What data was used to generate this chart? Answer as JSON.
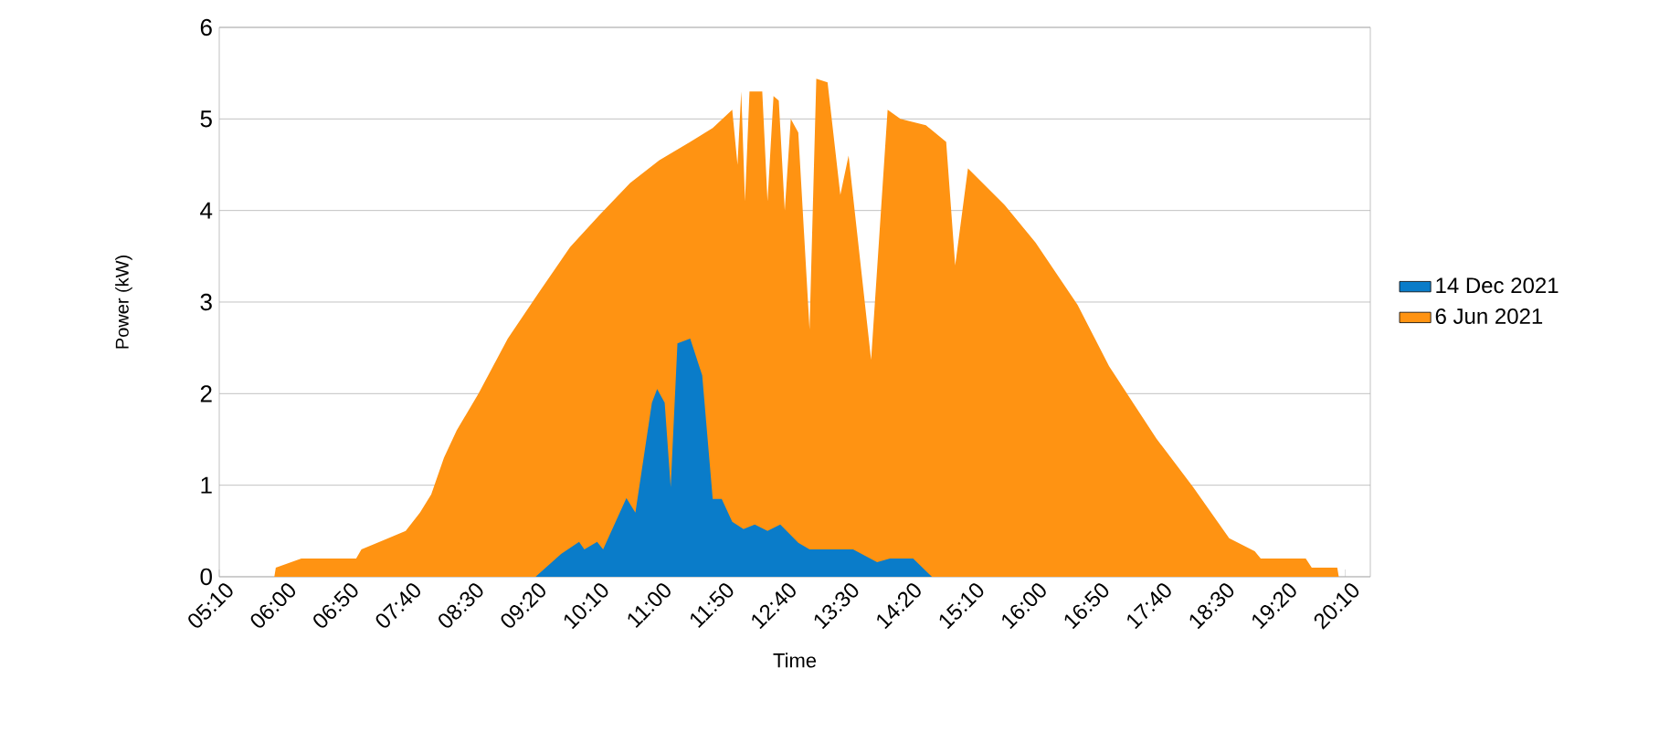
{
  "chart_data": {
    "type": "area",
    "xlabel": "Time",
    "ylabel": "Power (kW)",
    "legend": "right",
    "grid": "y",
    "xlim": [
      5.1667,
      20.5
    ],
    "ylim": [
      0,
      6
    ],
    "yticks": [
      0,
      1,
      2,
      3,
      4,
      5,
      6
    ],
    "xticks": [
      {
        "value": 5.1667,
        "label": "05:10"
      },
      {
        "value": 6.0,
        "label": "06:00"
      },
      {
        "value": 6.8333,
        "label": "06:50"
      },
      {
        "value": 7.6667,
        "label": "07:40"
      },
      {
        "value": 8.5,
        "label": "08:30"
      },
      {
        "value": 9.3333,
        "label": "09:20"
      },
      {
        "value": 10.1667,
        "label": "10:10"
      },
      {
        "value": 11.0,
        "label": "11:00"
      },
      {
        "value": 11.8333,
        "label": "11:50"
      },
      {
        "value": 12.6667,
        "label": "12:40"
      },
      {
        "value": 13.5,
        "label": "13:30"
      },
      {
        "value": 14.3333,
        "label": "14:20"
      },
      {
        "value": 15.1667,
        "label": "15:10"
      },
      {
        "value": 16.0,
        "label": "16:00"
      },
      {
        "value": 16.8333,
        "label": "16:50"
      },
      {
        "value": 17.6667,
        "label": "17:40"
      },
      {
        "value": 18.5,
        "label": "18:30"
      },
      {
        "value": 19.3333,
        "label": "19:20"
      },
      {
        "value": 20.1667,
        "label": "20:10"
      }
    ],
    "series": [
      {
        "name": "14 Dec 2021",
        "color": "#0a7cc9",
        "x": [
          9.38,
          9.72,
          9.96,
          10.03,
          10.2,
          10.28,
          10.59,
          10.71,
          10.93,
          11.0,
          11.1,
          11.18,
          11.27,
          11.44,
          11.6,
          11.74,
          11.86,
          12.0,
          12.15,
          12.3,
          12.47,
          12.64,
          12.88,
          13.03,
          13.61,
          13.93,
          14.1,
          14.41,
          14.66
        ],
        "values": [
          0,
          0.25,
          0.38,
          0.3,
          0.38,
          0.3,
          0.86,
          0.7,
          1.9,
          2.05,
          1.9,
          0.98,
          2.55,
          2.6,
          2.2,
          0.85,
          0.85,
          0.6,
          0.52,
          0.57,
          0.5,
          0.57,
          0.37,
          0.3,
          0.3,
          0.16,
          0.2,
          0.2,
          0
        ]
      },
      {
        "name": "6 Jun 2021",
        "color": "#ff9312",
        "x": [
          5.9,
          5.92,
          6.26,
          6.99,
          7.06,
          7.36,
          7.65,
          7.84,
          7.99,
          8.16,
          8.33,
          8.62,
          9.01,
          9.42,
          9.84,
          10.23,
          10.64,
          11.03,
          11.44,
          11.74,
          12.0,
          12.07,
          12.12,
          12.17,
          12.23,
          12.4,
          12.47,
          12.55,
          12.62,
          12.7,
          12.78,
          12.88,
          13.03,
          13.12,
          13.27,
          13.44,
          13.55,
          13.85,
          14.07,
          14.24,
          14.58,
          14.85,
          14.97,
          15.14,
          15.63,
          16.04,
          16.6,
          17.02,
          17.65,
          18.14,
          18.62,
          18.96,
          19.04,
          19.64,
          19.72,
          20.06,
          20.08
        ],
        "values": [
          0,
          0.1,
          0.2,
          0.2,
          0.3,
          0.4,
          0.5,
          0.7,
          0.9,
          1.3,
          1.6,
          2.0,
          2.6,
          3.1,
          3.6,
          3.95,
          4.3,
          4.55,
          4.75,
          4.9,
          5.1,
          4.5,
          5.3,
          4.1,
          5.3,
          5.3,
          4.1,
          5.25,
          5.2,
          4.0,
          5.0,
          4.85,
          2.7,
          5.44,
          5.4,
          4.17,
          4.6,
          2.37,
          5.1,
          5.0,
          4.93,
          4.75,
          3.4,
          4.46,
          4.06,
          3.65,
          2.97,
          2.3,
          1.51,
          0.98,
          0.42,
          0.28,
          0.2,
          0.2,
          0.1,
          0.1,
          0
        ]
      }
    ]
  }
}
